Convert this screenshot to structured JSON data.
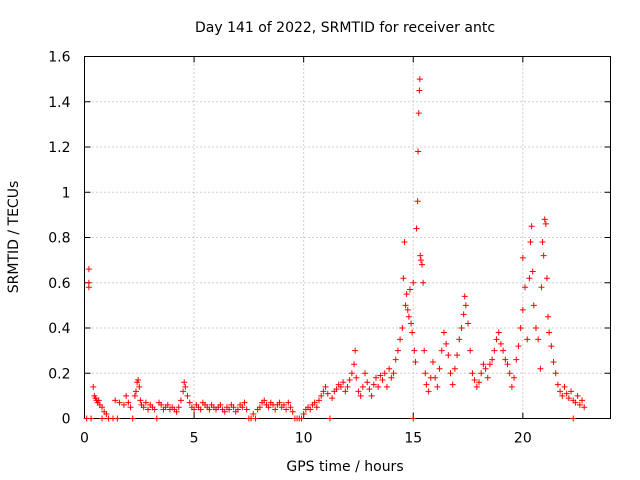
{
  "chart_data": {
    "type": "scatter",
    "title": "Day 141 of 2022, SRMTID for receiver antc",
    "xlabel": "GPS time / hours",
    "ylabel": "SRMTID / TECUs",
    "xlim": [
      0,
      24
    ],
    "ylim": [
      0,
      1.6
    ],
    "xticks": [
      0,
      5,
      10,
      15,
      20
    ],
    "yticks": [
      0,
      0.2,
      0.4,
      0.6,
      0.8,
      1,
      1.2,
      1.4,
      1.6
    ],
    "xtick_labels": [
      "0",
      "5",
      "10",
      "15",
      "20"
    ],
    "ytick_labels": [
      "0",
      "0.2",
      "0.4",
      "0.6",
      "0.8",
      "1",
      "1.2",
      "1.4",
      "1.6"
    ],
    "grid": true,
    "marker": "+",
    "color": "#ff0000",
    "series": [
      {
        "name": "SRMTID",
        "points": [
          [
            0.2,
            0.66
          ],
          [
            0.2,
            0.6
          ],
          [
            0.2,
            0.58
          ],
          [
            0.1,
            0.0
          ],
          [
            0.3,
            0.0
          ],
          [
            0.4,
            0.14
          ],
          [
            0.45,
            0.1
          ],
          [
            0.5,
            0.09
          ],
          [
            0.55,
            0.08
          ],
          [
            0.6,
            0.07
          ],
          [
            0.65,
            0.08
          ],
          [
            0.7,
            0.06
          ],
          [
            0.8,
            0.05
          ],
          [
            0.9,
            0.03
          ],
          [
            1.0,
            0.02
          ],
          [
            0.8,
            0.0
          ],
          [
            1.1,
            0.0
          ],
          [
            1.3,
            0.0
          ],
          [
            1.5,
            0.0
          ],
          [
            1.4,
            0.08
          ],
          [
            1.6,
            0.07
          ],
          [
            1.8,
            0.06
          ],
          [
            1.9,
            0.1
          ],
          [
            2.0,
            0.07
          ],
          [
            2.1,
            0.05
          ],
          [
            2.2,
            0.0
          ],
          [
            2.3,
            0.1
          ],
          [
            2.35,
            0.12
          ],
          [
            2.4,
            0.16
          ],
          [
            2.45,
            0.17
          ],
          [
            2.5,
            0.14
          ],
          [
            2.55,
            0.08
          ],
          [
            2.6,
            0.06
          ],
          [
            2.7,
            0.05
          ],
          [
            2.8,
            0.07
          ],
          [
            2.9,
            0.04
          ],
          [
            3.0,
            0.06
          ],
          [
            3.1,
            0.05
          ],
          [
            3.2,
            0.04
          ],
          [
            3.3,
            0.0
          ],
          [
            3.4,
            0.07
          ],
          [
            3.5,
            0.06
          ],
          [
            3.6,
            0.04
          ],
          [
            3.7,
            0.05
          ],
          [
            3.8,
            0.06
          ],
          [
            3.9,
            0.04
          ],
          [
            4.0,
            0.05
          ],
          [
            4.1,
            0.04
          ],
          [
            4.2,
            0.03
          ],
          [
            4.3,
            0.05
          ],
          [
            4.4,
            0.08
          ],
          [
            4.5,
            0.12
          ],
          [
            4.55,
            0.16
          ],
          [
            4.6,
            0.14
          ],
          [
            4.7,
            0.1
          ],
          [
            4.8,
            0.07
          ],
          [
            4.9,
            0.05
          ],
          [
            5.0,
            0.04
          ],
          [
            5.1,
            0.06
          ],
          [
            5.2,
            0.05
          ],
          [
            5.3,
            0.04
          ],
          [
            5.4,
            0.07
          ],
          [
            5.5,
            0.06
          ],
          [
            5.6,
            0.05
          ],
          [
            5.7,
            0.04
          ],
          [
            5.8,
            0.06
          ],
          [
            5.9,
            0.05
          ],
          [
            6.0,
            0.04
          ],
          [
            6.1,
            0.05
          ],
          [
            6.2,
            0.06
          ],
          [
            6.3,
            0.04
          ],
          [
            6.4,
            0.03
          ],
          [
            6.5,
            0.05
          ],
          [
            6.6,
            0.04
          ],
          [
            6.7,
            0.06
          ],
          [
            6.8,
            0.05
          ],
          [
            6.9,
            0.03
          ],
          [
            7.0,
            0.04
          ],
          [
            7.1,
            0.06
          ],
          [
            7.2,
            0.05
          ],
          [
            7.3,
            0.07
          ],
          [
            7.4,
            0.04
          ],
          [
            7.5,
            0.0
          ],
          [
            7.6,
            0.0
          ],
          [
            7.7,
            0.02
          ],
          [
            7.8,
            0.0
          ],
          [
            7.9,
            0.04
          ],
          [
            8.0,
            0.05
          ],
          [
            8.1,
            0.07
          ],
          [
            8.2,
            0.08
          ],
          [
            8.3,
            0.06
          ],
          [
            8.4,
            0.05
          ],
          [
            8.5,
            0.07
          ],
          [
            8.6,
            0.06
          ],
          [
            8.7,
            0.04
          ],
          [
            8.8,
            0.06
          ],
          [
            8.9,
            0.07
          ],
          [
            9.0,
            0.05
          ],
          [
            9.1,
            0.06
          ],
          [
            9.2,
            0.04
          ],
          [
            9.3,
            0.07
          ],
          [
            9.4,
            0.05
          ],
          [
            9.5,
            0.03
          ],
          [
            9.6,
            0.0
          ],
          [
            9.7,
            0.0
          ],
          [
            9.8,
            0.0
          ],
          [
            9.9,
            0.0
          ],
          [
            10.0,
            0.02
          ],
          [
            10.1,
            0.04
          ],
          [
            10.2,
            0.05
          ],
          [
            10.3,
            0.04
          ],
          [
            10.4,
            0.06
          ],
          [
            10.5,
            0.07
          ],
          [
            10.6,
            0.05
          ],
          [
            10.7,
            0.08
          ],
          [
            10.8,
            0.1
          ],
          [
            10.9,
            0.12
          ],
          [
            11.0,
            0.14
          ],
          [
            11.1,
            0.11
          ],
          [
            11.2,
            0.0
          ],
          [
            11.3,
            0.09
          ],
          [
            11.4,
            0.12
          ],
          [
            11.5,
            0.13
          ],
          [
            11.6,
            0.15
          ],
          [
            11.7,
            0.14
          ],
          [
            11.8,
            0.16
          ],
          [
            11.9,
            0.12
          ],
          [
            12.0,
            0.14
          ],
          [
            12.1,
            0.17
          ],
          [
            12.2,
            0.2
          ],
          [
            12.3,
            0.24
          ],
          [
            12.35,
            0.3
          ],
          [
            12.4,
            0.18
          ],
          [
            12.5,
            0.12
          ],
          [
            12.6,
            0.1
          ],
          [
            12.7,
            0.14
          ],
          [
            12.8,
            0.2
          ],
          [
            12.9,
            0.16
          ],
          [
            13.0,
            0.13
          ],
          [
            13.1,
            0.1
          ],
          [
            13.2,
            0.15
          ],
          [
            13.3,
            0.18
          ],
          [
            13.4,
            0.14
          ],
          [
            13.5,
            0.19
          ],
          [
            13.6,
            0.17
          ],
          [
            13.7,
            0.2
          ],
          [
            13.8,
            0.14
          ],
          [
            13.9,
            0.22
          ],
          [
            14.0,
            0.18
          ],
          [
            14.1,
            0.2
          ],
          [
            14.2,
            0.26
          ],
          [
            14.3,
            0.3
          ],
          [
            14.4,
            0.35
          ],
          [
            14.5,
            0.4
          ],
          [
            14.55,
            0.62
          ],
          [
            14.6,
            0.78
          ],
          [
            14.65,
            0.5
          ],
          [
            14.7,
            0.55
          ],
          [
            14.75,
            0.48
          ],
          [
            14.8,
            0.45
          ],
          [
            14.85,
            0.57
          ],
          [
            14.9,
            0.42
          ],
          [
            14.95,
            0.38
          ],
          [
            15.0,
            0.6
          ],
          [
            15.0,
            0.0
          ],
          [
            15.05,
            0.3
          ],
          [
            15.1,
            0.25
          ],
          [
            15.15,
            0.84
          ],
          [
            15.2,
            0.96
          ],
          [
            15.22,
            1.18
          ],
          [
            15.25,
            1.35
          ],
          [
            15.28,
            1.45
          ],
          [
            15.3,
            1.5
          ],
          [
            15.32,
            0.72
          ],
          [
            15.35,
            0.7
          ],
          [
            15.4,
            0.68
          ],
          [
            15.45,
            0.6
          ],
          [
            15.5,
            0.3
          ],
          [
            15.55,
            0.2
          ],
          [
            15.6,
            0.15
          ],
          [
            15.7,
            0.12
          ],
          [
            15.8,
            0.18
          ],
          [
            15.9,
            0.25
          ],
          [
            16.0,
            0.18
          ],
          [
            16.1,
            0.14
          ],
          [
            16.2,
            0.22
          ],
          [
            16.3,
            0.3
          ],
          [
            16.4,
            0.38
          ],
          [
            16.5,
            0.33
          ],
          [
            16.6,
            0.28
          ],
          [
            16.7,
            0.2
          ],
          [
            16.8,
            0.15
          ],
          [
            16.9,
            0.22
          ],
          [
            17.0,
            0.28
          ],
          [
            17.1,
            0.35
          ],
          [
            17.2,
            0.4
          ],
          [
            17.3,
            0.46
          ],
          [
            17.35,
            0.54
          ],
          [
            17.4,
            0.5
          ],
          [
            17.5,
            0.42
          ],
          [
            17.6,
            0.3
          ],
          [
            17.7,
            0.2
          ],
          [
            17.8,
            0.17
          ],
          [
            17.9,
            0.14
          ],
          [
            18.0,
            0.16
          ],
          [
            18.1,
            0.2
          ],
          [
            18.2,
            0.24
          ],
          [
            18.3,
            0.22
          ],
          [
            18.4,
            0.18
          ],
          [
            18.5,
            0.24
          ],
          [
            18.6,
            0.26
          ],
          [
            18.7,
            0.3
          ],
          [
            18.8,
            0.35
          ],
          [
            18.9,
            0.38
          ],
          [
            19.0,
            0.33
          ],
          [
            19.1,
            0.3
          ],
          [
            19.2,
            0.26
          ],
          [
            19.3,
            0.24
          ],
          [
            19.4,
            0.2
          ],
          [
            19.5,
            0.14
          ],
          [
            19.6,
            0.18
          ],
          [
            19.7,
            0.26
          ],
          [
            19.8,
            0.32
          ],
          [
            19.9,
            0.4
          ],
          [
            20.0,
            0.48
          ],
          [
            20.0,
            0.71
          ],
          [
            20.1,
            0.58
          ],
          [
            20.2,
            0.35
          ],
          [
            20.3,
            0.62
          ],
          [
            20.35,
            0.78
          ],
          [
            20.4,
            0.85
          ],
          [
            20.45,
            0.65
          ],
          [
            20.5,
            0.5
          ],
          [
            20.6,
            0.4
          ],
          [
            20.7,
            0.35
          ],
          [
            20.8,
            0.22
          ],
          [
            20.85,
            0.58
          ],
          [
            20.9,
            0.78
          ],
          [
            20.95,
            0.72
          ],
          [
            21.0,
            0.88
          ],
          [
            21.05,
            0.86
          ],
          [
            21.1,
            0.62
          ],
          [
            21.15,
            0.45
          ],
          [
            21.2,
            0.38
          ],
          [
            21.3,
            0.32
          ],
          [
            21.4,
            0.25
          ],
          [
            21.5,
            0.2
          ],
          [
            21.6,
            0.15
          ],
          [
            21.7,
            0.12
          ],
          [
            21.8,
            0.1
          ],
          [
            21.9,
            0.14
          ],
          [
            22.0,
            0.11
          ],
          [
            22.1,
            0.09
          ],
          [
            22.2,
            0.12
          ],
          [
            22.3,
            0.08
          ],
          [
            22.4,
            0.07
          ],
          [
            22.5,
            0.1
          ],
          [
            22.6,
            0.06
          ],
          [
            22.7,
            0.08
          ],
          [
            22.8,
            0.05
          ],
          [
            22.3,
            0.0
          ]
        ]
      }
    ]
  }
}
